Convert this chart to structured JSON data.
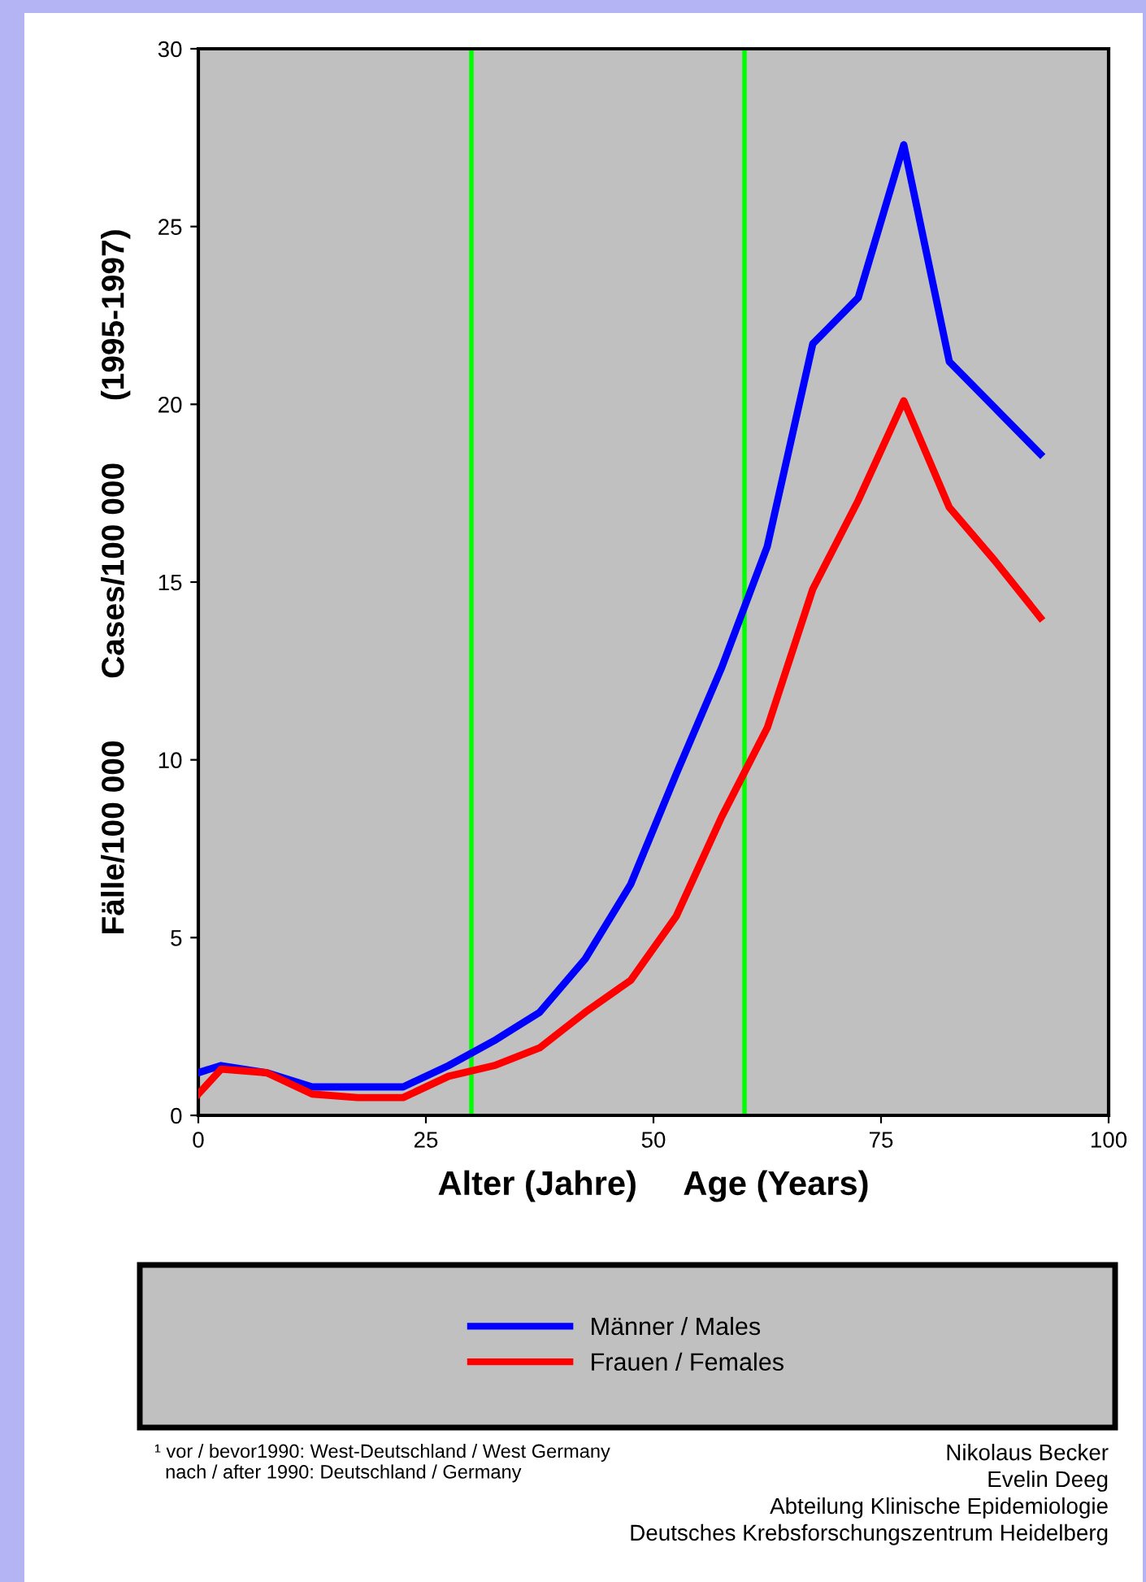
{
  "chart_data": {
    "type": "line",
    "xlabel": "Alter (Jahre)     Age (Years)",
    "ylabel": "Fälle/100 000       Cases/100 000       (1995-1997)",
    "x": [
      0,
      2.5,
      7.5,
      12.5,
      17.5,
      22.5,
      27.5,
      32.5,
      37.5,
      42.5,
      47.5,
      52.5,
      57.5,
      62.5,
      67.5,
      72.5,
      77.5,
      82.5,
      87.5,
      92.5
    ],
    "series": [
      {
        "name": "Männer / Males",
        "color": "#0000ff",
        "values": [
          1.2,
          1.4,
          1.2,
          0.8,
          0.8,
          0.8,
          1.4,
          2.1,
          2.9,
          4.4,
          6.5,
          9.6,
          12.6,
          16.0,
          21.7,
          23.0,
          27.3,
          21.2,
          19.9,
          18.6
        ]
      },
      {
        "name": "Frauen / Females",
        "color": "#ff0000",
        "values": [
          0.6,
          1.3,
          1.2,
          0.6,
          0.5,
          0.5,
          1.1,
          1.4,
          1.9,
          2.9,
          3.8,
          5.6,
          8.4,
          10.9,
          14.8,
          17.3,
          20.1,
          17.1,
          15.6,
          14.0
        ]
      }
    ],
    "xlim": [
      0,
      100
    ],
    "xticks": [
      0,
      25,
      50,
      75,
      100
    ],
    "ylim": [
      0,
      30
    ],
    "yticks": [
      0,
      5,
      10,
      15,
      20,
      25,
      30
    ],
    "ref_lines": [
      {
        "axis": "x",
        "value": 30,
        "color": "#00ff00"
      },
      {
        "axis": "x",
        "value": 60,
        "color": "#00ff00"
      }
    ],
    "legend": "bottom",
    "grid": false,
    "marker": "none",
    "line_style": "solid",
    "annotations": [
      "¹ vor / bevor1990: West-Deutschland / West Germany\n  nach / after 1990: Deutschland / Germany",
      "Nikolaus Becker\nEvelin Deeg\nAbteilung Klinische Epidemiologie\nDeutsches Krebsforschungszentrum Heidelberg"
    ]
  }
}
